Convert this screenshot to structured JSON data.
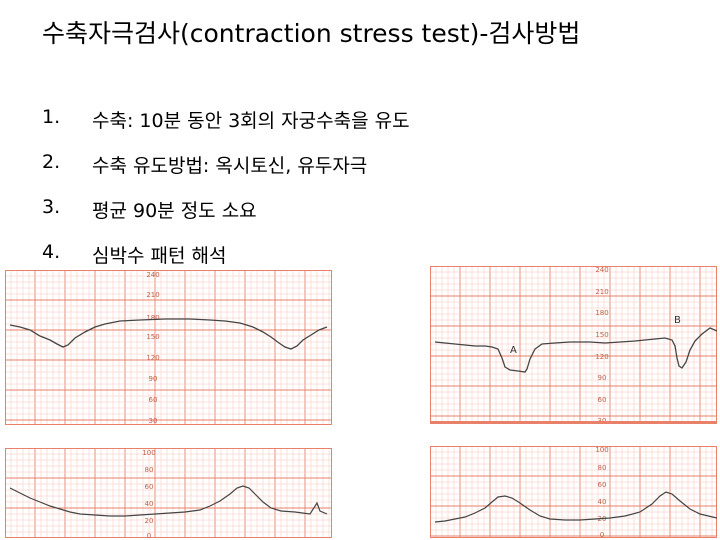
{
  "slide": {
    "title": "수축자극검사(contraction stress test)-검사방법",
    "items": [
      {
        "num": "1.",
        "text": "수축: 10분 동안 3회의 자궁수축을 유도"
      },
      {
        "num": "2.",
        "text": "수축 유도방법: 옥시토신, 유두자극"
      },
      {
        "num": "3.",
        "text": "평균 90분 정도 소요"
      },
      {
        "num": "4.",
        "text": "심박수 패턴 해석"
      }
    ]
  },
  "ctg_left": {
    "fhr_ticks": [
      "240",
      "210",
      "180",
      "150",
      "120",
      "90",
      "60",
      "30"
    ],
    "uc_ticks": [
      "100",
      "80",
      "60",
      "40",
      "20",
      "0"
    ]
  },
  "ctg_right": {
    "fhr_ticks": [
      "240",
      "210",
      "180",
      "150",
      "120",
      "90",
      "60",
      "30"
    ],
    "uc_ticks": [
      "100",
      "80",
      "60",
      "40",
      "20",
      "0"
    ],
    "label_a": "A",
    "label_b": "B"
  },
  "colors": {
    "grid_major": "#e8806a",
    "grid_minor": "#f6c6bb",
    "trace": "#444444",
    "tick_label": "#c0604a"
  }
}
